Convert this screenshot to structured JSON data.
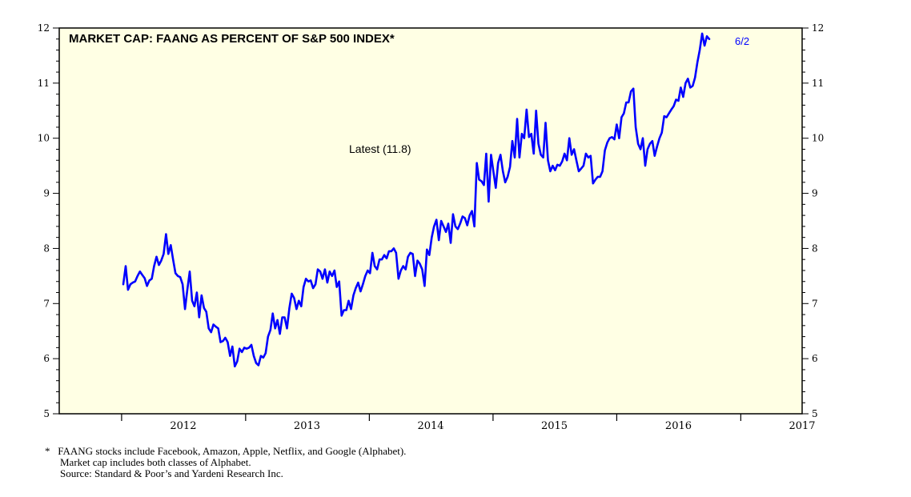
{
  "chart_data": {
    "type": "line",
    "title": "MARKET CAP: FAANG AS PERCENT OF S&P 500 INDEX*",
    "annotation": "Latest (11.8)",
    "end_label": "6/2",
    "ylim": [
      5,
      12
    ],
    "yticks": [
      "5",
      "6",
      "7",
      "8",
      "9",
      "10",
      "11",
      "12"
    ],
    "xlim": [
      "2011-07-01",
      "2017-07-01"
    ],
    "year_labels": [
      "2012",
      "2013",
      "2014",
      "2015",
      "2016",
      "2017"
    ],
    "grid": false,
    "series": [
      {
        "name": "",
        "color": "#0000ff",
        "points": [
          [
            "2012-01-06",
            7.35
          ],
          [
            "2012-01-13",
            7.68
          ],
          [
            "2012-01-20",
            7.25
          ],
          [
            "2012-01-27",
            7.35
          ],
          [
            "2012-02-03",
            7.38
          ],
          [
            "2012-02-10",
            7.4
          ],
          [
            "2012-02-17",
            7.5
          ],
          [
            "2012-02-24",
            7.58
          ],
          [
            "2012-03-02",
            7.52
          ],
          [
            "2012-03-09",
            7.46
          ],
          [
            "2012-03-16",
            7.32
          ],
          [
            "2012-03-23",
            7.42
          ],
          [
            "2012-03-30",
            7.45
          ],
          [
            "2012-04-06",
            7.68
          ],
          [
            "2012-04-13",
            7.85
          ],
          [
            "2012-04-20",
            7.7
          ],
          [
            "2012-04-27",
            7.78
          ],
          [
            "2012-05-04",
            7.9
          ],
          [
            "2012-05-11",
            8.26
          ],
          [
            "2012-05-18",
            7.9
          ],
          [
            "2012-05-25",
            8.06
          ],
          [
            "2012-06-01",
            7.8
          ],
          [
            "2012-06-08",
            7.55
          ],
          [
            "2012-06-15",
            7.5
          ],
          [
            "2012-06-22",
            7.48
          ],
          [
            "2012-06-29",
            7.35
          ],
          [
            "2012-07-06",
            6.9
          ],
          [
            "2012-07-13",
            7.25
          ],
          [
            "2012-07-20",
            7.58
          ],
          [
            "2012-07-27",
            7.05
          ],
          [
            "2012-08-03",
            6.95
          ],
          [
            "2012-08-10",
            7.2
          ],
          [
            "2012-08-17",
            6.75
          ],
          [
            "2012-08-24",
            7.15
          ],
          [
            "2012-08-31",
            6.92
          ],
          [
            "2012-09-07",
            6.85
          ],
          [
            "2012-09-14",
            6.55
          ],
          [
            "2012-09-21",
            6.48
          ],
          [
            "2012-09-28",
            6.62
          ],
          [
            "2012-10-05",
            6.58
          ],
          [
            "2012-10-12",
            6.55
          ],
          [
            "2012-10-19",
            6.3
          ],
          [
            "2012-10-26",
            6.32
          ],
          [
            "2012-11-02",
            6.38
          ],
          [
            "2012-11-09",
            6.3
          ],
          [
            "2012-11-16",
            6.05
          ],
          [
            "2012-11-23",
            6.22
          ],
          [
            "2012-11-30",
            5.86
          ],
          [
            "2012-12-07",
            5.95
          ],
          [
            "2012-12-14",
            6.18
          ],
          [
            "2012-12-21",
            6.12
          ],
          [
            "2012-12-28",
            6.2
          ],
          [
            "2013-01-04",
            6.18
          ],
          [
            "2013-01-11",
            6.2
          ],
          [
            "2013-01-18",
            6.25
          ],
          [
            "2013-01-25",
            6.05
          ],
          [
            "2013-02-01",
            5.92
          ],
          [
            "2013-02-08",
            5.88
          ],
          [
            "2013-02-15",
            6.05
          ],
          [
            "2013-02-22",
            6.02
          ],
          [
            "2013-03-01",
            6.1
          ],
          [
            "2013-03-08",
            6.4
          ],
          [
            "2013-03-15",
            6.52
          ],
          [
            "2013-03-22",
            6.82
          ],
          [
            "2013-03-29",
            6.55
          ],
          [
            "2013-04-05",
            6.7
          ],
          [
            "2013-04-12",
            6.45
          ],
          [
            "2013-04-19",
            6.75
          ],
          [
            "2013-04-26",
            6.75
          ],
          [
            "2013-05-03",
            6.55
          ],
          [
            "2013-05-10",
            6.92
          ],
          [
            "2013-05-17",
            7.18
          ],
          [
            "2013-05-24",
            7.1
          ],
          [
            "2013-05-31",
            6.9
          ],
          [
            "2013-06-07",
            7.05
          ],
          [
            "2013-06-14",
            6.95
          ],
          [
            "2013-06-21",
            7.3
          ],
          [
            "2013-06-28",
            7.45
          ],
          [
            "2013-07-05",
            7.4
          ],
          [
            "2013-07-12",
            7.42
          ],
          [
            "2013-07-19",
            7.28
          ],
          [
            "2013-07-26",
            7.35
          ],
          [
            "2013-08-02",
            7.62
          ],
          [
            "2013-08-09",
            7.58
          ],
          [
            "2013-08-16",
            7.45
          ],
          [
            "2013-08-23",
            7.62
          ],
          [
            "2013-08-30",
            7.38
          ],
          [
            "2013-09-06",
            7.58
          ],
          [
            "2013-09-13",
            7.5
          ],
          [
            "2013-09-20",
            7.6
          ],
          [
            "2013-09-27",
            7.3
          ],
          [
            "2013-10-04",
            7.4
          ],
          [
            "2013-10-11",
            6.78
          ],
          [
            "2013-10-18",
            6.88
          ],
          [
            "2013-10-25",
            6.88
          ],
          [
            "2013-11-01",
            7.05
          ],
          [
            "2013-11-08",
            6.9
          ],
          [
            "2013-11-15",
            7.15
          ],
          [
            "2013-11-22",
            7.28
          ],
          [
            "2013-11-29",
            7.38
          ],
          [
            "2013-12-06",
            7.22
          ],
          [
            "2013-12-13",
            7.35
          ],
          [
            "2013-12-20",
            7.5
          ],
          [
            "2013-12-27",
            7.6
          ],
          [
            "2014-01-03",
            7.55
          ],
          [
            "2014-01-10",
            7.92
          ],
          [
            "2014-01-17",
            7.68
          ],
          [
            "2014-01-24",
            7.62
          ],
          [
            "2014-01-31",
            7.8
          ],
          [
            "2014-02-07",
            7.8
          ],
          [
            "2014-02-14",
            7.88
          ],
          [
            "2014-02-21",
            7.82
          ],
          [
            "2014-02-28",
            7.95
          ],
          [
            "2014-03-07",
            7.95
          ],
          [
            "2014-03-14",
            8.0
          ],
          [
            "2014-03-21",
            7.92
          ],
          [
            "2014-03-28",
            7.45
          ],
          [
            "2014-04-04",
            7.6
          ],
          [
            "2014-04-11",
            7.68
          ],
          [
            "2014-04-18",
            7.62
          ],
          [
            "2014-04-25",
            7.85
          ],
          [
            "2014-05-02",
            7.92
          ],
          [
            "2014-05-09",
            7.9
          ],
          [
            "2014-05-16",
            7.5
          ],
          [
            "2014-05-23",
            7.78
          ],
          [
            "2014-05-30",
            7.72
          ],
          [
            "2014-06-06",
            7.62
          ],
          [
            "2014-06-13",
            7.32
          ],
          [
            "2014-06-20",
            7.98
          ],
          [
            "2014-06-27",
            7.88
          ],
          [
            "2014-07-04",
            8.2
          ],
          [
            "2014-07-11",
            8.4
          ],
          [
            "2014-07-18",
            8.52
          ],
          [
            "2014-07-25",
            8.15
          ],
          [
            "2014-08-01",
            8.5
          ],
          [
            "2014-08-08",
            8.4
          ],
          [
            "2014-08-15",
            8.3
          ],
          [
            "2014-08-22",
            8.45
          ],
          [
            "2014-08-29",
            8.1
          ],
          [
            "2014-09-05",
            8.62
          ],
          [
            "2014-09-12",
            8.4
          ],
          [
            "2014-09-19",
            8.35
          ],
          [
            "2014-09-26",
            8.45
          ],
          [
            "2014-10-03",
            8.58
          ],
          [
            "2014-10-10",
            8.55
          ],
          [
            "2014-10-17",
            8.42
          ],
          [
            "2014-10-24",
            8.6
          ],
          [
            "2014-10-31",
            8.68
          ],
          [
            "2014-11-07",
            8.4
          ],
          [
            "2014-11-14",
            9.55
          ],
          [
            "2014-11-21",
            9.25
          ],
          [
            "2014-11-28",
            9.22
          ],
          [
            "2014-12-05",
            9.15
          ],
          [
            "2014-12-12",
            9.72
          ],
          [
            "2014-12-19",
            8.85
          ],
          [
            "2014-12-26",
            9.7
          ],
          [
            "2015-01-02",
            9.4
          ],
          [
            "2015-01-09",
            9.1
          ],
          [
            "2015-01-16",
            9.55
          ],
          [
            "2015-01-23",
            9.7
          ],
          [
            "2015-01-30",
            9.4
          ],
          [
            "2015-02-06",
            9.2
          ],
          [
            "2015-02-13",
            9.3
          ],
          [
            "2015-02-20",
            9.48
          ],
          [
            "2015-02-27",
            9.95
          ],
          [
            "2015-03-06",
            9.65
          ],
          [
            "2015-03-13",
            10.35
          ],
          [
            "2015-03-20",
            9.65
          ],
          [
            "2015-03-27",
            10.08
          ],
          [
            "2015-04-03",
            10.0
          ],
          [
            "2015-04-10",
            10.52
          ],
          [
            "2015-04-17",
            10.02
          ],
          [
            "2015-04-24",
            10.08
          ],
          [
            "2015-05-01",
            9.72
          ],
          [
            "2015-05-08",
            10.5
          ],
          [
            "2015-05-15",
            9.9
          ],
          [
            "2015-05-22",
            9.7
          ],
          [
            "2015-05-29",
            9.65
          ],
          [
            "2015-06-05",
            10.28
          ],
          [
            "2015-06-12",
            9.6
          ],
          [
            "2015-06-19",
            9.4
          ],
          [
            "2015-06-26",
            9.5
          ],
          [
            "2015-07-03",
            9.42
          ],
          [
            "2015-07-10",
            9.52
          ],
          [
            "2015-07-17",
            9.5
          ],
          [
            "2015-07-24",
            9.58
          ],
          [
            "2015-07-31",
            9.72
          ],
          [
            "2015-08-07",
            9.6
          ],
          [
            "2015-08-14",
            10.0
          ],
          [
            "2015-08-21",
            9.7
          ],
          [
            "2015-08-28",
            9.8
          ],
          [
            "2015-09-04",
            9.6
          ],
          [
            "2015-09-11",
            9.4
          ],
          [
            "2015-09-18",
            9.45
          ],
          [
            "2015-09-25",
            9.5
          ],
          [
            "2015-10-02",
            9.72
          ],
          [
            "2015-10-09",
            9.65
          ],
          [
            "2015-10-16",
            9.68
          ],
          [
            "2015-10-23",
            9.18
          ],
          [
            "2015-10-30",
            9.25
          ],
          [
            "2015-11-06",
            9.3
          ],
          [
            "2015-11-13",
            9.3
          ],
          [
            "2015-11-20",
            9.4
          ],
          [
            "2015-11-27",
            9.78
          ],
          [
            "2015-12-04",
            9.92
          ],
          [
            "2015-12-11",
            10.0
          ],
          [
            "2015-12-18",
            10.02
          ],
          [
            "2015-12-25",
            9.98
          ],
          [
            "2016-01-01",
            10.25
          ],
          [
            "2016-01-08",
            10.0
          ],
          [
            "2016-01-15",
            10.38
          ],
          [
            "2016-01-22",
            10.45
          ],
          [
            "2016-01-29",
            10.65
          ],
          [
            "2016-02-05",
            10.65
          ],
          [
            "2016-02-12",
            10.85
          ],
          [
            "2016-02-19",
            10.9
          ],
          [
            "2016-02-26",
            10.2
          ],
          [
            "2016-03-04",
            9.9
          ],
          [
            "2016-03-11",
            9.8
          ],
          [
            "2016-03-18",
            10.0
          ],
          [
            "2016-03-25",
            9.5
          ],
          [
            "2016-04-01",
            9.8
          ],
          [
            "2016-04-08",
            9.9
          ],
          [
            "2016-04-15",
            9.95
          ],
          [
            "2016-04-22",
            9.68
          ],
          [
            "2016-04-29",
            9.85
          ],
          [
            "2016-05-06",
            10.0
          ],
          [
            "2016-05-13",
            10.1
          ],
          [
            "2016-05-20",
            10.4
          ],
          [
            "2016-05-27",
            10.38
          ],
          [
            "2016-06-03",
            10.45
          ],
          [
            "2016-06-10",
            10.52
          ],
          [
            "2016-06-17",
            10.58
          ],
          [
            "2016-06-24",
            10.7
          ],
          [
            "2016-07-01",
            10.68
          ],
          [
            "2016-07-08",
            10.92
          ],
          [
            "2016-07-15",
            10.75
          ],
          [
            "2016-07-22",
            11.0
          ],
          [
            "2016-07-29",
            11.08
          ],
          [
            "2016-08-05",
            10.92
          ],
          [
            "2016-08-12",
            10.95
          ],
          [
            "2016-08-19",
            11.1
          ],
          [
            "2016-08-26",
            11.38
          ],
          [
            "2016-09-02",
            11.6
          ],
          [
            "2016-09-09",
            11.9
          ],
          [
            "2016-09-16",
            11.68
          ],
          [
            "2016-09-23",
            11.85
          ],
          [
            "2016-09-30",
            11.8
          ]
        ]
      }
    ]
  },
  "footnote": {
    "marker": "*",
    "lines": [
      "FAANG stocks include Facebook, Amazon, Apple, Netflix, and Google (Alphabet).",
      "Market cap includes both classes of Alphabet.",
      "Source: Standard & Poor’s and Yardeni Research Inc."
    ]
  }
}
